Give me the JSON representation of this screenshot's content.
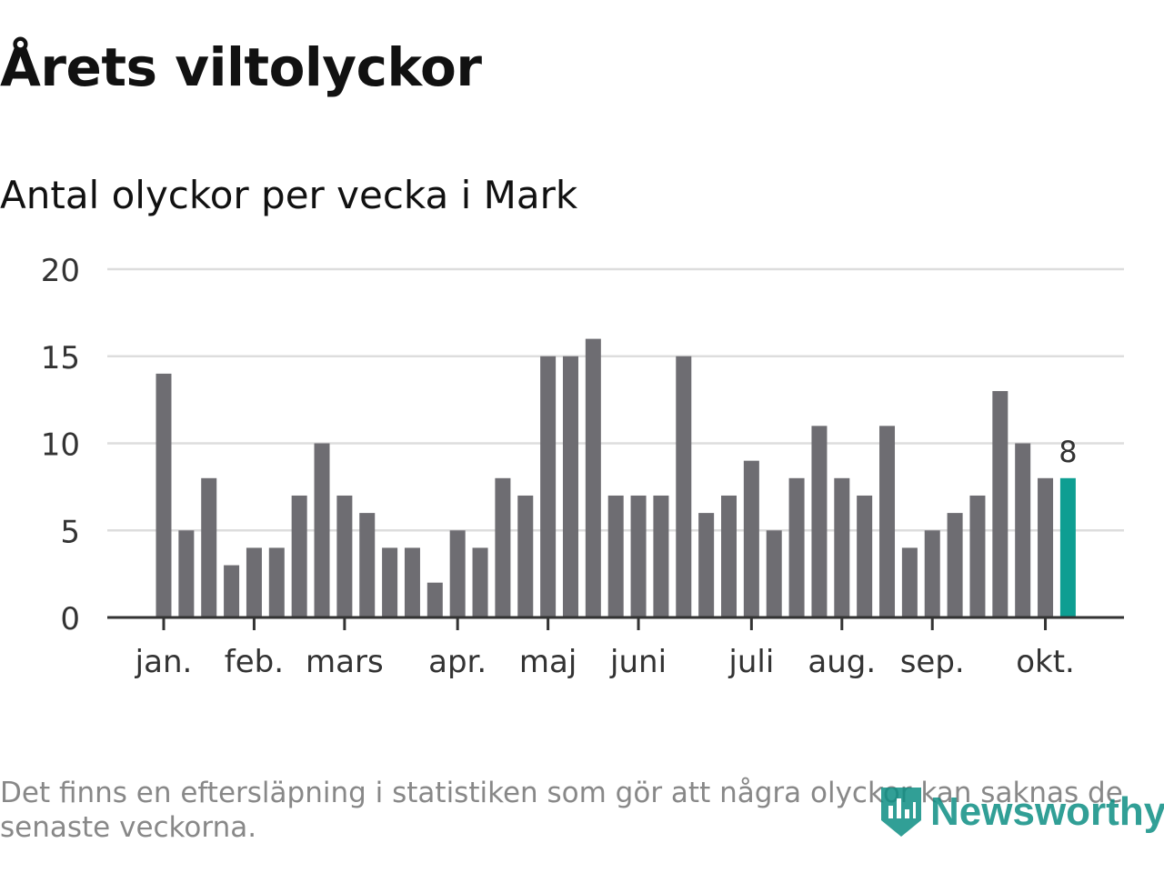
{
  "header": {
    "title": "Årets viltolyckor",
    "subtitle": "Antal olyckor per vecka i Mark"
  },
  "chart_data": {
    "type": "bar",
    "title": "Årets viltolyckor",
    "subtitle": "Antal olyckor per vecka i Mark",
    "values": [
      14,
      5,
      8,
      3,
      4,
      4,
      7,
      10,
      7,
      6,
      4,
      4,
      2,
      5,
      4,
      8,
      7,
      15,
      15,
      16,
      7,
      7,
      7,
      15,
      6,
      7,
      9,
      5,
      8,
      11,
      8,
      7,
      11,
      4,
      5,
      6,
      7,
      13,
      10,
      8,
      8
    ],
    "month_ticks": [
      {
        "label": "jan.",
        "index": 0
      },
      {
        "label": "feb.",
        "index": 4
      },
      {
        "label": "mars",
        "index": 8
      },
      {
        "label": "apr.",
        "index": 13
      },
      {
        "label": "maj",
        "index": 17
      },
      {
        "label": "juni",
        "index": 21
      },
      {
        "label": "juli",
        "index": 26
      },
      {
        "label": "aug.",
        "index": 30
      },
      {
        "label": "sep.",
        "index": 34
      },
      {
        "label": "okt.",
        "index": 39
      }
    ],
    "y_ticks": [
      0,
      5,
      10,
      15,
      20
    ],
    "ylim": [
      0,
      20
    ],
    "grid": true,
    "highlight_index": 40,
    "highlight_label": "8",
    "colors": {
      "bar": "#6e6d72",
      "highlight": "#0e9e92",
      "grid": "#dddddd",
      "baseline": "#333333"
    }
  },
  "footer": {
    "note": "Det finns en eftersläpning i statistiken som gör att några olyckor kan saknas de senaste veckorna.",
    "brand": "Newsworthy",
    "brand_icon": "bar-chart-shield-icon"
  }
}
